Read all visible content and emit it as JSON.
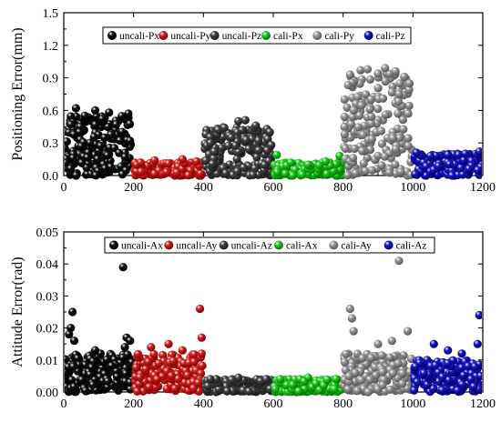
{
  "chart_data": [
    {
      "type": "scatter",
      "title": "",
      "xlabel": "",
      "ylabel": "Positioning Error(mm)",
      "xlim": [
        0,
        1200
      ],
      "ylim": [
        0,
        1.5
      ],
      "xticks": [
        "0",
        "200",
        "400",
        "600",
        "800",
        "1000",
        "1200"
      ],
      "yticks": [
        "0.0",
        "0.3",
        "0.6",
        "0.9",
        "1.2",
        "1.5"
      ],
      "legend_position": "top",
      "series": [
        {
          "name": "uncali-Px",
          "color": "#111111",
          "x_range": [
            0,
            200
          ],
          "typical_max": 0.55,
          "points": [
            [
              20,
              0.47
            ],
            [
              35,
              0.62
            ],
            [
              60,
              0.55
            ],
            [
              90,
              0.6
            ],
            [
              110,
              0.52
            ],
            [
              130,
              0.58
            ],
            [
              150,
              0.47
            ],
            [
              185,
              0.57
            ],
            [
              45,
              0.4
            ],
            [
              75,
              0.3
            ]
          ]
        },
        {
          "name": "uncali-Py",
          "color": "#d42020",
          "x_range": [
            200,
            400
          ],
          "typical_max": 0.12,
          "points": [
            [
              220,
              0.12
            ],
            [
              260,
              0.14
            ],
            [
              300,
              0.11
            ],
            [
              340,
              0.15
            ],
            [
              380,
              0.13
            ]
          ]
        },
        {
          "name": "uncali-Pz",
          "color": "#444444",
          "x_range": [
            400,
            600
          ],
          "typical_max": 0.45,
          "points": [
            [
              420,
              0.3
            ],
            [
              460,
              0.44
            ],
            [
              500,
              0.5
            ],
            [
              520,
              0.51
            ],
            [
              550,
              0.46
            ],
            [
              590,
              0.4
            ],
            [
              480,
              0.35
            ]
          ]
        },
        {
          "name": "cali-Px",
          "color": "#22cc22",
          "x_range": [
            600,
            800
          ],
          "typical_max": 0.12,
          "points": [
            [
              610,
              0.19
            ],
            [
              650,
              0.12
            ],
            [
              700,
              0.1
            ],
            [
              750,
              0.13
            ],
            [
              790,
              0.18
            ]
          ]
        },
        {
          "name": "cali-Py",
          "color": "#9a9a9a",
          "x_range": [
            800,
            1000
          ],
          "typical_max": 0.95,
          "points": [
            [
              820,
              0.93
            ],
            [
              850,
              0.97
            ],
            [
              870,
              0.98
            ],
            [
              900,
              0.94
            ],
            [
              920,
              0.99
            ],
            [
              950,
              0.96
            ],
            [
              975,
              0.91
            ],
            [
              990,
              0.85
            ],
            [
              830,
              0.6
            ],
            [
              880,
              0.7
            ],
            [
              960,
              0.75
            ]
          ]
        },
        {
          "name": "cali-Pz",
          "color": "#1a1ac8",
          "x_range": [
            1000,
            1200
          ],
          "typical_max": 0.2,
          "points": [
            [
              1010,
              0.21
            ],
            [
              1050,
              0.18
            ],
            [
              1100,
              0.19
            ],
            [
              1150,
              0.2
            ],
            [
              1190,
              0.22
            ]
          ]
        }
      ]
    },
    {
      "type": "scatter",
      "title": "",
      "xlabel": "",
      "ylabel": "Attitude Error(rad)",
      "xlim": [
        0,
        1200
      ],
      "ylim": [
        0,
        0.05
      ],
      "xticks": [
        "0",
        "200",
        "400",
        "600",
        "800",
        "1000",
        "1200"
      ],
      "yticks": [
        "0.00",
        "0.01",
        "0.02",
        "0.03",
        "0.04",
        "0.05"
      ],
      "legend_position": "top",
      "series": [
        {
          "name": "uncali-Ax",
          "color": "#111111",
          "x_range": [
            0,
            200
          ],
          "typical_max": 0.012,
          "points": [
            [
              15,
              0.018
            ],
            [
              20,
              0.02
            ],
            [
              25,
              0.025
            ],
            [
              30,
              0.016
            ],
            [
              170,
              0.039
            ],
            [
              175,
              0.014
            ],
            [
              180,
              0.017
            ],
            [
              190,
              0.016
            ],
            [
              90,
              0.013
            ]
          ]
        },
        {
          "name": "uncali-Ay",
          "color": "#d42020",
          "x_range": [
            200,
            400
          ],
          "typical_max": 0.012,
          "points": [
            [
              390,
              0.026
            ],
            [
              395,
              0.017
            ],
            [
              395,
              0.012
            ],
            [
              250,
              0.014
            ],
            [
              300,
              0.015
            ],
            [
              340,
              0.013
            ]
          ]
        },
        {
          "name": "uncali-Az",
          "color": "#444444",
          "x_range": [
            400,
            600
          ],
          "typical_max": 0.004,
          "points": [
            [
              420,
              0.004
            ],
            [
              500,
              0.0045
            ],
            [
              580,
              0.004
            ]
          ]
        },
        {
          "name": "cali-Ax",
          "color": "#22cc22",
          "x_range": [
            600,
            800
          ],
          "typical_max": 0.004,
          "points": [
            [
              620,
              0.004
            ],
            [
              700,
              0.0045
            ],
            [
              780,
              0.004
            ]
          ]
        },
        {
          "name": "cali-Ay",
          "color": "#9a9a9a",
          "x_range": [
            800,
            1000
          ],
          "typical_max": 0.012,
          "points": [
            [
              820,
              0.026
            ],
            [
              825,
              0.023
            ],
            [
              830,
              0.019
            ],
            [
              960,
              0.041
            ],
            [
              985,
              0.019
            ],
            [
              900,
              0.015
            ],
            [
              940,
              0.016
            ]
          ]
        },
        {
          "name": "cali-Az",
          "color": "#1a1ac8",
          "x_range": [
            1000,
            1200
          ],
          "typical_max": 0.01,
          "points": [
            [
              1190,
              0.024
            ],
            [
              1185,
              0.015
            ],
            [
              1060,
              0.015
            ],
            [
              1100,
              0.013
            ],
            [
              1140,
              0.012
            ]
          ]
        }
      ]
    }
  ]
}
